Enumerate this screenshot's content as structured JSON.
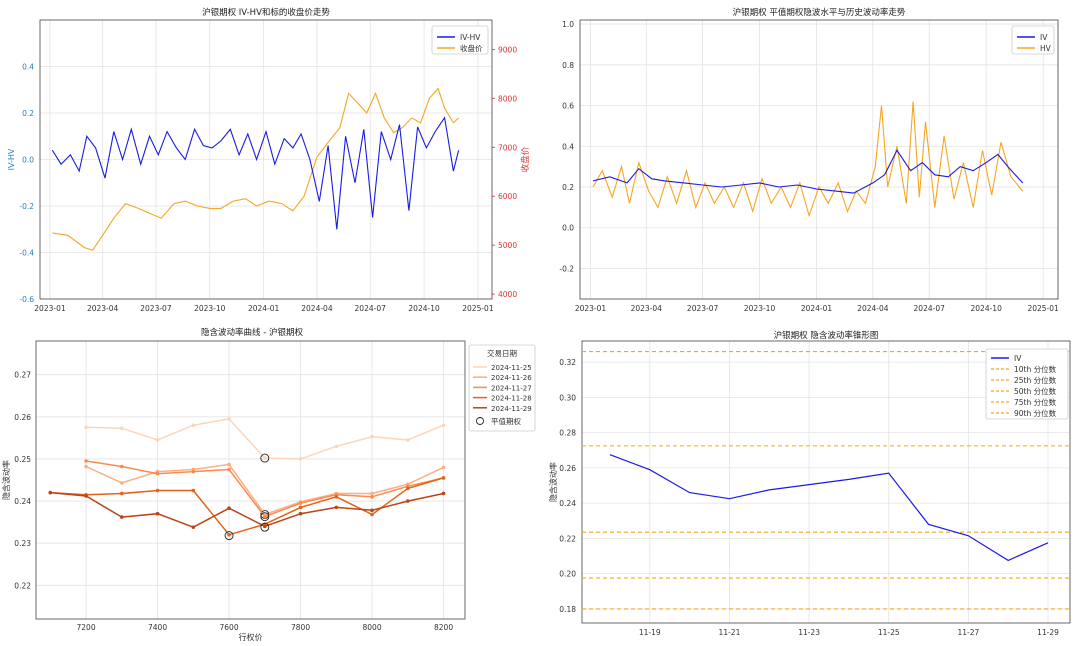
{
  "chart_data": [
    {
      "type": "line",
      "title": "沪银期权 IV-HV和标的收盘价走势",
      "ylabel": "IV-HV",
      "y2label": "收盘价",
      "ylim": [
        -0.6,
        0.6
      ],
      "yticks": [
        "-0.6",
        "-0.4",
        "-0.2",
        "0.0",
        "0.2",
        "0.4"
      ],
      "y2lim": [
        3900,
        9600
      ],
      "y2ticks": [
        "4000",
        "5000",
        "6000",
        "7000",
        "8000",
        "9000"
      ],
      "xticks": [
        "2023-01",
        "2023-04",
        "2023-07",
        "2023-10",
        "2024-01",
        "2024-04",
        "2024-07",
        "2024-10",
        "2025-01"
      ],
      "legend": [
        "IV-HV",
        "收盘价"
      ],
      "legend_position": "top-right",
      "colors": {
        "iv_hv": "#1a1ae6",
        "close": "#f5a623"
      },
      "series": [
        {
          "name": "IV-HV",
          "axis": "left",
          "x": [
            "2023-01-05",
            "2023-01-20",
            "2023-02-05",
            "2023-02-20",
            "2023-03-05",
            "2023-03-20",
            "2023-04-05",
            "2023-04-20",
            "2023-05-05",
            "2023-05-20",
            "2023-06-05",
            "2023-06-20",
            "2023-07-05",
            "2023-07-20",
            "2023-08-05",
            "2023-08-20",
            "2023-09-05",
            "2023-09-20",
            "2023-10-05",
            "2023-10-20",
            "2023-11-05",
            "2023-11-20",
            "2023-12-05",
            "2023-12-20",
            "2024-01-05",
            "2024-01-20",
            "2024-02-05",
            "2024-02-20",
            "2024-03-05",
            "2024-03-20",
            "2024-04-05",
            "2024-04-20",
            "2024-05-05",
            "2024-05-20",
            "2024-06-05",
            "2024-06-20",
            "2024-07-05",
            "2024-07-20",
            "2024-08-05",
            "2024-08-20",
            "2024-09-05",
            "2024-09-20",
            "2024-10-05",
            "2024-10-20",
            "2024-11-05",
            "2024-11-20",
            "2024-11-29"
          ],
          "values": [
            0.04,
            -0.02,
            0.02,
            -0.05,
            0.1,
            0.05,
            -0.08,
            0.12,
            0.0,
            0.13,
            -0.02,
            0.1,
            0.02,
            0.12,
            0.05,
            0.0,
            0.13,
            0.06,
            0.05,
            0.08,
            0.13,
            0.02,
            0.11,
            0.0,
            0.12,
            -0.02,
            0.09,
            0.05,
            0.11,
            0.0,
            -0.18,
            0.06,
            -0.3,
            0.1,
            -0.1,
            0.13,
            -0.25,
            0.12,
            0.0,
            0.15,
            -0.22,
            0.14,
            0.05,
            0.12,
            0.18,
            -0.05,
            0.04
          ]
        },
        {
          "name": "收盘价",
          "axis": "right",
          "x": [
            "2023-01-05",
            "2023-02-01",
            "2023-03-01",
            "2023-03-15",
            "2023-04-01",
            "2023-04-20",
            "2023-05-10",
            "2023-06-01",
            "2023-06-20",
            "2023-07-10",
            "2023-08-01",
            "2023-08-20",
            "2023-09-10",
            "2023-10-01",
            "2023-10-20",
            "2023-11-10",
            "2023-12-01",
            "2023-12-20",
            "2024-01-10",
            "2024-02-01",
            "2024-02-20",
            "2024-03-10",
            "2024-04-01",
            "2024-04-20",
            "2024-05-10",
            "2024-05-25",
            "2024-06-10",
            "2024-06-25",
            "2024-07-10",
            "2024-07-25",
            "2024-08-10",
            "2024-08-25",
            "2024-09-10",
            "2024-09-25",
            "2024-10-10",
            "2024-10-25",
            "2024-11-05",
            "2024-11-20",
            "2024-11-29"
          ],
          "values": [
            5250,
            5200,
            4950,
            4900,
            5200,
            5550,
            5850,
            5750,
            5650,
            5550,
            5850,
            5900,
            5800,
            5750,
            5750,
            5900,
            5950,
            5800,
            5900,
            5850,
            5700,
            6000,
            6800,
            7100,
            7400,
            8100,
            7900,
            7700,
            8100,
            7600,
            7300,
            7400,
            7600,
            7500,
            8000,
            8200,
            7800,
            7500,
            7600
          ]
        }
      ]
    },
    {
      "type": "line",
      "title": "沪银期权 平值期权隐波水平与历史波动率走势",
      "ylim": [
        -0.35,
        1.02
      ],
      "yticks": [
        "-0.2",
        "0.0",
        "0.2",
        "0.4",
        "0.6",
        "0.8",
        "1.0"
      ],
      "xticks": [
        "2023-01",
        "2023-04",
        "2023-07",
        "2023-10",
        "2024-01",
        "2024-04",
        "2024-07",
        "2024-10",
        "2025-01"
      ],
      "legend": [
        "IV",
        "HV"
      ],
      "legend_position": "top-right",
      "colors": {
        "iv": "#1a1ae6",
        "hv": "#f5a623"
      },
      "series": [
        {
          "name": "IV",
          "x": [
            "2023-01-05",
            "2023-02-01",
            "2023-03-01",
            "2023-03-20",
            "2023-04-10",
            "2023-05-01",
            "2023-06-01",
            "2023-07-01",
            "2023-08-01",
            "2023-09-01",
            "2023-10-01",
            "2023-11-01",
            "2023-12-01",
            "2024-01-01",
            "2024-02-01",
            "2024-03-01",
            "2024-04-01",
            "2024-04-20",
            "2024-05-10",
            "2024-06-01",
            "2024-06-20",
            "2024-07-10",
            "2024-08-01",
            "2024-08-20",
            "2024-09-10",
            "2024-10-01",
            "2024-10-20",
            "2024-11-05",
            "2024-11-29"
          ],
          "values": [
            0.23,
            0.25,
            0.22,
            0.29,
            0.24,
            0.23,
            0.22,
            0.21,
            0.2,
            0.21,
            0.22,
            0.2,
            0.21,
            0.19,
            0.18,
            0.17,
            0.22,
            0.26,
            0.38,
            0.28,
            0.32,
            0.26,
            0.25,
            0.3,
            0.28,
            0.32,
            0.36,
            0.3,
            0.22
          ]
        },
        {
          "name": "HV",
          "x": [
            "2023-01-05",
            "2023-01-20",
            "2023-02-05",
            "2023-02-20",
            "2023-03-05",
            "2023-03-20",
            "2023-04-05",
            "2023-04-20",
            "2023-05-05",
            "2023-05-20",
            "2023-06-05",
            "2023-06-20",
            "2023-07-05",
            "2023-07-20",
            "2023-08-05",
            "2023-08-20",
            "2023-09-05",
            "2023-09-20",
            "2023-10-05",
            "2023-10-20",
            "2023-11-05",
            "2023-11-20",
            "2023-12-05",
            "2023-12-20",
            "2024-01-05",
            "2024-01-20",
            "2024-02-05",
            "2024-02-20",
            "2024-03-05",
            "2024-03-20",
            "2024-04-05",
            "2024-04-15",
            "2024-04-25",
            "2024-05-10",
            "2024-05-25",
            "2024-06-05",
            "2024-06-15",
            "2024-06-25",
            "2024-07-10",
            "2024-07-25",
            "2024-08-10",
            "2024-08-25",
            "2024-09-10",
            "2024-09-25",
            "2024-10-10",
            "2024-10-25",
            "2024-11-10",
            "2024-11-29"
          ],
          "values": [
            0.2,
            0.28,
            0.15,
            0.3,
            0.12,
            0.32,
            0.18,
            0.1,
            0.25,
            0.12,
            0.28,
            0.1,
            0.22,
            0.12,
            0.2,
            0.1,
            0.22,
            0.08,
            0.24,
            0.12,
            0.2,
            0.1,
            0.22,
            0.06,
            0.2,
            0.12,
            0.22,
            0.08,
            0.18,
            0.12,
            0.3,
            0.6,
            0.2,
            0.4,
            0.12,
            0.62,
            0.15,
            0.52,
            0.1,
            0.45,
            0.14,
            0.32,
            0.1,
            0.38,
            0.16,
            0.42,
            0.25,
            0.18
          ]
        }
      ]
    },
    {
      "type": "line",
      "title": "隐含波动率曲线 - 沪银期权",
      "xlabel": "行权价",
      "ylabel": "隐含波动率",
      "xlim": [
        7060,
        8260
      ],
      "ylim": [
        0.212,
        0.278
      ],
      "xticks": [
        "7200",
        "7400",
        "7600",
        "7800",
        "8000",
        "8200"
      ],
      "yticks": [
        "0.22",
        "0.23",
        "0.24",
        "0.25",
        "0.26",
        "0.27"
      ],
      "legend_title": "交易日期",
      "legend_position": "top-right",
      "atm_label": "平值期权",
      "series": [
        {
          "name": "2024-11-25",
          "color": "#fdd5b8",
          "x": [
            7200,
            7300,
            7400,
            7500,
            7600,
            7700,
            7800,
            7900,
            8000,
            8100,
            8200
          ],
          "values": [
            0.2575,
            0.2573,
            0.2545,
            0.258,
            0.2595,
            0.2502,
            0.25,
            0.253,
            0.2553,
            0.2545,
            0.258
          ],
          "atm": {
            "x": 7700,
            "y": 0.2502
          }
        },
        {
          "name": "2024-11-26",
          "color": "#fcae82",
          "x": [
            7200,
            7300,
            7400,
            7500,
            7600,
            7700,
            7800,
            7900,
            8000,
            8100,
            8200
          ],
          "values": [
            0.2482,
            0.2443,
            0.247,
            0.2475,
            0.2487,
            0.2368,
            0.2398,
            0.2418,
            0.2418,
            0.244,
            0.248
          ],
          "atm": {
            "x": 7700,
            "y": 0.2368
          }
        },
        {
          "name": "2024-11-27",
          "color": "#fa8b4e",
          "x": [
            7200,
            7300,
            7400,
            7500,
            7600,
            7700,
            7800,
            7900,
            8000,
            8100,
            8200
          ],
          "values": [
            0.2495,
            0.2482,
            0.2465,
            0.247,
            0.2475,
            0.2363,
            0.2395,
            0.2415,
            0.241,
            0.2435,
            0.2455
          ],
          "atm": {
            "x": 7700,
            "y": 0.2363
          }
        },
        {
          "name": "2024-11-28",
          "color": "#e4621b",
          "x": [
            7100,
            7200,
            7300,
            7400,
            7500,
            7600,
            7700,
            7800,
            7900,
            8000,
            8100,
            8200
          ],
          "values": [
            0.242,
            0.2415,
            0.2418,
            0.2425,
            0.2425,
            0.232,
            0.2345,
            0.2385,
            0.241,
            0.2368,
            0.243,
            0.2455
          ],
          "atm": {
            "x": 7600,
            "y": 0.2318
          }
        },
        {
          "name": "2024-11-29",
          "color": "#b94414",
          "x": [
            7100,
            7200,
            7300,
            7400,
            7500,
            7600,
            7700,
            7800,
            7900,
            8000,
            8100,
            8200
          ],
          "values": [
            0.242,
            0.2412,
            0.2362,
            0.237,
            0.2338,
            0.2383,
            0.234,
            0.237,
            0.2385,
            0.2378,
            0.24,
            0.2418
          ],
          "atm": {
            "x": 7700,
            "y": 0.2338
          }
        }
      ]
    },
    {
      "type": "line",
      "title": "沪银期权 隐含波动率锥形图",
      "ylabel": "隐含波动率",
      "ylim": [
        0.172,
        0.332
      ],
      "yticks": [
        "0.18",
        "0.20",
        "0.22",
        "0.24",
        "0.26",
        "0.28",
        "0.30",
        "0.32"
      ],
      "categories": [
        "11-18",
        "11-19",
        "11-20",
        "11-21",
        "11-22",
        "11-23",
        "11-24",
        "11-25",
        "11-26",
        "11-27",
        "11-28",
        "11-29"
      ],
      "xtick_labels": [
        "11-19",
        "11-21",
        "11-23",
        "11-25",
        "11-27",
        "11-29"
      ],
      "legend_position": "top-right",
      "series": [
        {
          "name": "IV",
          "color": "#1a1ae6",
          "values": [
            0.2675,
            0.259,
            0.246,
            0.2425,
            0.2475,
            0.2505,
            0.2535,
            0.257,
            0.228,
            0.2215,
            0.2075,
            0.2175
          ]
        }
      ],
      "percentiles": [
        {
          "name": "10th 分位数",
          "value": 0.18
        },
        {
          "name": "25th 分位数",
          "value": 0.1975
        },
        {
          "name": "50th 分位数",
          "value": 0.2235
        },
        {
          "name": "75th 分位数",
          "value": 0.2725
        },
        {
          "name": "90th 分位数",
          "value": 0.326
        }
      ],
      "percentile_color": "#f0a81c"
    }
  ]
}
